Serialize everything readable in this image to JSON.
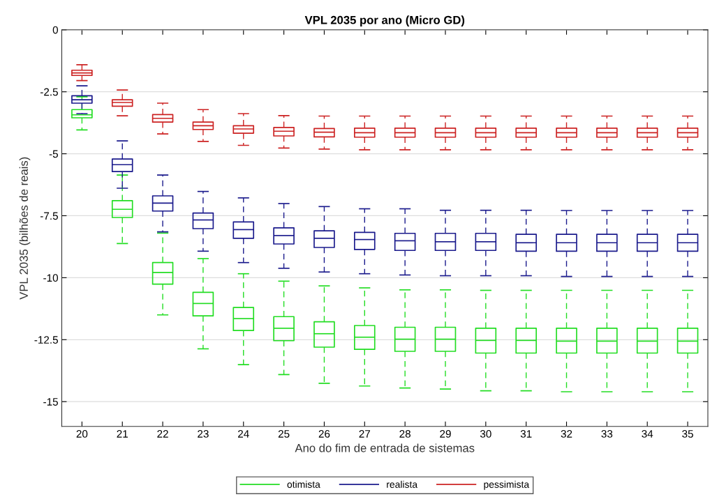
{
  "chart_data": {
    "type": "box",
    "title": "VPL 2035 por ano (Micro GD)",
    "xlabel": "Ano do fim de entrada de sistemas",
    "ylabel": "VPL 2035 (bilhões de reais)",
    "categories": [
      "20",
      "21",
      "22",
      "23",
      "24",
      "25",
      "26",
      "27",
      "28",
      "29",
      "30",
      "31",
      "32",
      "33",
      "34",
      "35"
    ],
    "ylim": [
      -16,
      0
    ],
    "yticks": [
      0,
      -2.5,
      -5,
      -7.5,
      -10,
      -12.5,
      -15
    ],
    "grid": "y",
    "legend": "bottom",
    "line_style": "dashed",
    "series": [
      {
        "name": "otimista",
        "color": "#22dd22",
        "boxes": [
          {
            "low": -4.04,
            "q1": -3.55,
            "median": -3.43,
            "q3": -3.22,
            "high": -2.7
          },
          {
            "low": -8.62,
            "q1": -7.57,
            "median": -7.24,
            "q3": -6.89,
            "high": -5.86
          },
          {
            "low": -11.5,
            "q1": -10.26,
            "median": -9.79,
            "q3": -9.39,
            "high": -8.2
          },
          {
            "low": -12.87,
            "q1": -11.54,
            "median": -11.04,
            "q3": -10.59,
            "high": -9.23
          },
          {
            "low": -13.51,
            "q1": -12.13,
            "median": -11.65,
            "q3": -11.2,
            "high": -9.84
          },
          {
            "low": -13.91,
            "q1": -12.54,
            "median": -12.04,
            "q3": -11.57,
            "high": -10.14
          },
          {
            "low": -14.26,
            "q1": -12.8,
            "median": -12.26,
            "q3": -11.78,
            "high": -10.33
          },
          {
            "low": -14.37,
            "q1": -12.89,
            "median": -12.4,
            "q3": -11.93,
            "high": -10.41
          },
          {
            "low": -14.45,
            "q1": -12.97,
            "median": -12.48,
            "q3": -12.0,
            "high": -10.49
          },
          {
            "low": -14.49,
            "q1": -12.97,
            "median": -12.48,
            "q3": -12.0,
            "high": -10.49
          },
          {
            "low": -14.56,
            "q1": -13.04,
            "median": -12.53,
            "q3": -12.04,
            "high": -10.51
          },
          {
            "low": -14.56,
            "q1": -13.04,
            "median": -12.53,
            "q3": -12.04,
            "high": -10.51
          },
          {
            "low": -14.6,
            "q1": -13.04,
            "median": -12.56,
            "q3": -12.04,
            "high": -10.51
          },
          {
            "low": -14.6,
            "q1": -13.04,
            "median": -12.56,
            "q3": -12.04,
            "high": -10.51
          },
          {
            "low": -14.6,
            "q1": -13.04,
            "median": -12.56,
            "q3": -12.04,
            "high": -10.51
          },
          {
            "low": -14.6,
            "q1": -13.04,
            "median": -12.56,
            "q3": -12.04,
            "high": -10.51
          }
        ]
      },
      {
        "name": "realista",
        "color": "#1a1a8c",
        "boxes": [
          {
            "low": -3.38,
            "q1": -2.96,
            "median": -2.82,
            "q3": -2.66,
            "high": -2.26
          },
          {
            "low": -6.39,
            "q1": -5.72,
            "median": -5.44,
            "q3": -5.21,
            "high": -4.48
          },
          {
            "low": -8.15,
            "q1": -7.31,
            "median": -6.99,
            "q3": -6.7,
            "high": -5.86
          },
          {
            "low": -8.93,
            "q1": -8.02,
            "median": -7.67,
            "q3": -7.39,
            "high": -6.52
          },
          {
            "low": -9.39,
            "q1": -8.41,
            "median": -8.06,
            "q3": -7.75,
            "high": -6.78
          },
          {
            "low": -9.62,
            "q1": -8.64,
            "median": -8.3,
            "q3": -7.99,
            "high": -7.01
          },
          {
            "low": -9.77,
            "q1": -8.78,
            "median": -8.41,
            "q3": -8.11,
            "high": -7.13
          },
          {
            "low": -9.84,
            "q1": -8.86,
            "median": -8.46,
            "q3": -8.17,
            "high": -7.22
          },
          {
            "low": -9.89,
            "q1": -8.9,
            "median": -8.51,
            "q3": -8.21,
            "high": -7.22
          },
          {
            "low": -9.92,
            "q1": -8.9,
            "median": -8.55,
            "q3": -8.21,
            "high": -7.28
          },
          {
            "low": -9.92,
            "q1": -8.9,
            "median": -8.55,
            "q3": -8.21,
            "high": -7.28
          },
          {
            "low": -9.92,
            "q1": -8.93,
            "median": -8.59,
            "q3": -8.25,
            "high": -7.28
          },
          {
            "low": -9.95,
            "q1": -8.93,
            "median": -8.59,
            "q3": -8.25,
            "high": -7.29
          },
          {
            "low": -9.95,
            "q1": -8.93,
            "median": -8.59,
            "q3": -8.25,
            "high": -7.29
          },
          {
            "low": -9.95,
            "q1": -8.93,
            "median": -8.59,
            "q3": -8.25,
            "high": -7.29
          },
          {
            "low": -9.95,
            "q1": -8.93,
            "median": -8.59,
            "q3": -8.25,
            "high": -7.29
          }
        ]
      },
      {
        "name": "pessimista",
        "color": "#cc2222",
        "boxes": [
          {
            "low": -2.05,
            "q1": -1.84,
            "median": -1.74,
            "q3": -1.63,
            "high": -1.41
          },
          {
            "low": -3.47,
            "q1": -3.08,
            "median": -2.93,
            "q3": -2.82,
            "high": -2.43
          },
          {
            "low": -4.2,
            "q1": -3.72,
            "median": -3.57,
            "q3": -3.42,
            "high": -2.96
          },
          {
            "low": -4.5,
            "q1": -4.02,
            "median": -3.87,
            "q3": -3.72,
            "high": -3.22
          },
          {
            "low": -4.66,
            "q1": -4.17,
            "median": -4.0,
            "q3": -3.87,
            "high": -3.38
          },
          {
            "low": -4.77,
            "q1": -4.28,
            "median": -4.09,
            "q3": -3.94,
            "high": -3.46
          },
          {
            "low": -4.81,
            "q1": -4.32,
            "median": -4.13,
            "q3": -3.98,
            "high": -3.48
          },
          {
            "low": -4.84,
            "q1": -4.33,
            "median": -4.15,
            "q3": -3.97,
            "high": -3.48
          },
          {
            "low": -4.84,
            "q1": -4.33,
            "median": -4.15,
            "q3": -3.97,
            "high": -3.48
          },
          {
            "low": -4.84,
            "q1": -4.33,
            "median": -4.15,
            "q3": -3.97,
            "high": -3.48
          },
          {
            "low": -4.84,
            "q1": -4.33,
            "median": -4.15,
            "q3": -3.97,
            "high": -3.48
          },
          {
            "low": -4.84,
            "q1": -4.33,
            "median": -4.15,
            "q3": -3.97,
            "high": -3.48
          },
          {
            "low": -4.84,
            "q1": -4.33,
            "median": -4.15,
            "q3": -3.97,
            "high": -3.48
          },
          {
            "low": -4.84,
            "q1": -4.33,
            "median": -4.15,
            "q3": -3.97,
            "high": -3.48
          },
          {
            "low": -4.84,
            "q1": -4.33,
            "median": -4.15,
            "q3": -3.97,
            "high": -3.48
          },
          {
            "low": -4.84,
            "q1": -4.33,
            "median": -4.15,
            "q3": -3.97,
            "high": -3.48
          }
        ]
      }
    ]
  }
}
